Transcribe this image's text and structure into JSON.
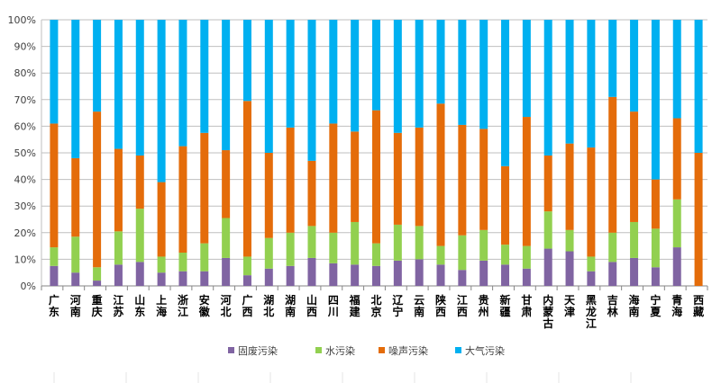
{
  "chart_data": {
    "type": "bar",
    "stacked": "percent",
    "title": "",
    "xlabel": "",
    "ylabel": "",
    "ylim": [
      0,
      100
    ],
    "yticks": [
      "0%",
      "10%",
      "20%",
      "30%",
      "40%",
      "50%",
      "60%",
      "70%",
      "80%",
      "90%",
      "100%"
    ],
    "grid": true,
    "legend_position": "bottom",
    "categories": [
      "广东",
      "河南",
      "重庆",
      "江苏",
      "山东",
      "上海",
      "浙江",
      "安徽",
      "河北",
      "广西",
      "湖北",
      "湖南",
      "山西",
      "四川",
      "福建",
      "北京",
      "辽宁",
      "云南",
      "陕西",
      "江西",
      "贵州",
      "新疆",
      "甘肃",
      "内蒙古",
      "天津",
      "黑龙江",
      "吉林",
      "海南",
      "宁夏",
      "青海",
      "西藏"
    ],
    "series": [
      {
        "name": "固废污染",
        "color": "#8064a2",
        "values": [
          7.5,
          5,
          2,
          8,
          9,
          5,
          5.5,
          5.5,
          10.5,
          4,
          6.5,
          7.5,
          10.5,
          8.5,
          8,
          7.5,
          9.5,
          10,
          8,
          6,
          9.5,
          8,
          6.5,
          14,
          13,
          5.5,
          9,
          10.5,
          7,
          14.5,
          0
        ]
      },
      {
        "name": "水污染",
        "color": "#92d050",
        "values": [
          7,
          13.5,
          5,
          12.5,
          20,
          6,
          7,
          10.5,
          15,
          7,
          11.5,
          12.5,
          12,
          11.5,
          16,
          8.5,
          13.5,
          12.5,
          7,
          13,
          11.5,
          7.5,
          8.5,
          14,
          8,
          5.5,
          11,
          13.5,
          14.5,
          18,
          0
        ]
      },
      {
        "name": "噪声污染",
        "color": "#e46c0a",
        "values": [
          46.5,
          29.5,
          58.5,
          31,
          20,
          28,
          40,
          41.5,
          25.5,
          58.5,
          32,
          39.5,
          24.5,
          41,
          34,
          50,
          34.5,
          37,
          53.5,
          41.5,
          38,
          29.5,
          48.5,
          21,
          32.5,
          41,
          51,
          41.5,
          18.5,
          30.5,
          50
        ]
      },
      {
        "name": "大气污染",
        "color": "#00b0f0",
        "values": [
          39,
          52,
          34.5,
          48.5,
          51,
          61,
          47.5,
          42.5,
          49,
          30.5,
          50,
          40.5,
          53,
          39,
          42,
          34,
          42.5,
          40.5,
          31.5,
          39.5,
          41,
          55,
          36.5,
          51,
          46.5,
          48,
          29,
          34.5,
          60,
          37,
          50
        ]
      }
    ]
  }
}
